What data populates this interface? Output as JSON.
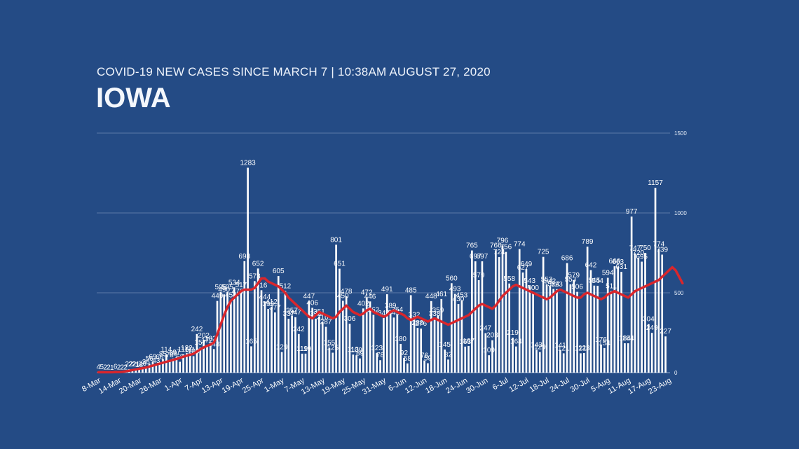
{
  "chart_data": {
    "type": "bar",
    "subtitle": "COVID-19 NEW CASES SINCE MARCH 7 | 10:38AM AUGUST 27, 2020",
    "title": "IOWA",
    "xlabel": "",
    "ylabel": "",
    "ylim": [
      0,
      1500
    ],
    "yticks": [
      "0",
      "500",
      "1000",
      "1500"
    ],
    "grid": true,
    "legend": "none",
    "bar_color": "#ffffff",
    "line_color": "#d9262c",
    "x_tick_labels": [
      "8-Mar",
      "14-Mar",
      "20-Mar",
      "26-Mar",
      "1-Apr",
      "7-Apr",
      "13-Apr",
      "19-Apr",
      "25-Apr",
      "1-May",
      "7-May",
      "13-May",
      "19-May",
      "25-May",
      "31-May",
      "6-Jun",
      "12-Jun",
      "18-Jun",
      "24-Jun",
      "30-Jun",
      "6-Jul",
      "12-Jul",
      "18-Jul",
      "24-Jul",
      "30-Jul",
      "5-Aug",
      "11-Aug",
      "17-Aug",
      "23-Aug"
    ],
    "series": [
      {
        "type": "bar",
        "values": [
          4,
          5,
          2,
          2,
          1,
          6,
          2,
          2,
          2,
          22,
          22,
          21,
          18,
          26,
          36,
          56,
          69,
          43,
          66,
          85,
          114,
          78,
          89,
          97,
          68,
          115,
          122,
          111,
          103,
          242,
          157,
          202,
          172,
          182,
          148,
          449,
          505,
          490,
          505,
          454,
          534,
          478,
          517,
          698,
          1283,
          165,
          573,
          652,
          516,
          444,
          399,
          412,
          377,
          605,
          129,
          512,
          337,
          357,
          347,
          242,
          119,
          119,
          447,
          406,
          338,
          351,
          316,
          287,
          155,
          125,
          801,
          651,
          450,
          478,
          306,
          113,
          109,
          89,
          402,
          472,
          446,
          362,
          123,
          78,
          343,
          491,
          389,
          345,
          364,
          180,
          92,
          58,
          485,
          332,
          280,
          276,
          76,
          59,
          448,
          338,
          359,
          461,
          145,
          82,
          560,
          493,
          430,
          453,
          163,
          167,
          765,
          697,
          579,
          697,
          247,
          109,
          203,
          766,
          724,
          796,
          756,
          558,
          219,
          164,
          774,
          627,
          649,
          543,
          500,
          143,
          129,
          725,
          553,
          542,
          524,
          523,
          141,
          121,
          686,
          553,
          579,
          506,
          121,
          123,
          789,
          642,
          545,
          544,
          176,
          154,
          594,
          511,
          666,
          663,
          631,
          184,
          184,
          977,
          747,
          720,
          695,
          750,
          304,
          249,
          1157,
          774,
          739,
          227
        ]
      },
      {
        "type": "line",
        "values": [
          3,
          3,
          3,
          3,
          3,
          4,
          4,
          5,
          8,
          12,
          16,
          20,
          24,
          28,
          32,
          38,
          44,
          50,
          56,
          62,
          68,
          74,
          80,
          86,
          92,
          100,
          106,
          112,
          118,
          132,
          146,
          158,
          168,
          176,
          188,
          240,
          300,
          360,
          410,
          450,
          470,
          490,
          510,
          520,
          520,
          520,
          530,
          560,
          590,
          590,
          570,
          560,
          550,
          540,
          520,
          500,
          470,
          450,
          430,
          410,
          390,
          370,
          350,
          340,
          360,
          380,
          370,
          360,
          350,
          340,
          350,
          380,
          400,
          420,
          400,
          380,
          370,
          360,
          370,
          390,
          400,
          380,
          370,
          360,
          350,
          360,
          380,
          390,
          380,
          370,
          360,
          340,
          330,
          340,
          350,
          340,
          330,
          320,
          330,
          340,
          330,
          320,
          310,
          300,
          310,
          320,
          330,
          340,
          350,
          360,
          380,
          400,
          420,
          430,
          420,
          410,
          400,
          420,
          450,
          480,
          500,
          520,
          540,
          550,
          540,
          530,
          520,
          510,
          500,
          490,
          480,
          470,
          460,
          470,
          490,
          510,
          520,
          510,
          500,
          490,
          480,
          470,
          470,
          490,
          500,
          490,
          480,
          470,
          460,
          470,
          490,
          500,
          510,
          500,
          490,
          480,
          470,
          490,
          510,
          520,
          530,
          540,
          550,
          560,
          570,
          580,
          600,
          620,
          640,
          660,
          640,
          600,
          560
        ]
      }
    ]
  }
}
